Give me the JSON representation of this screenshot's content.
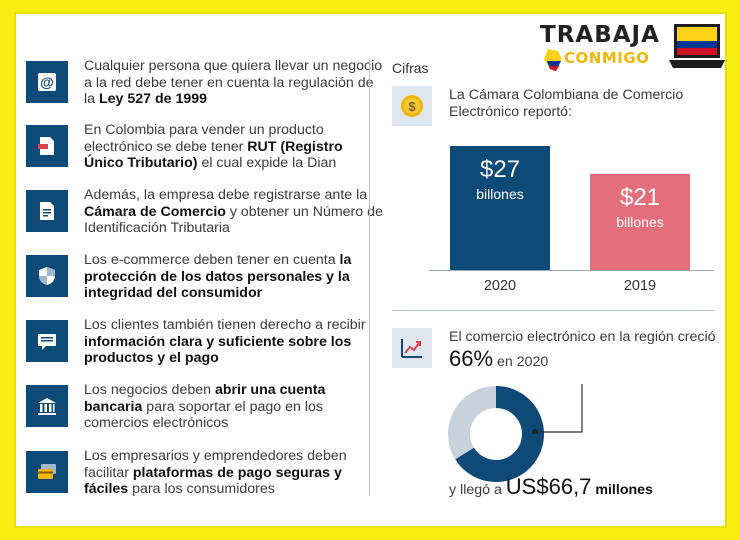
{
  "logo": {
    "line1": "TRABAJA",
    "line2": "CONMIGO"
  },
  "items": [
    {
      "icon": "at-sign-icon",
      "parts": [
        [
          "Cualquier persona que quiera llevar un negocio a la red debe tener en cuenta la regulación de la ",
          false
        ],
        [
          "Ley 527 de 1999",
          true
        ]
      ]
    },
    {
      "icon": "document-icon",
      "parts": [
        [
          "En Colombia para vender un producto electrónico se debe tener ",
          false
        ],
        [
          "RUT (Registro Único Tributario)",
          true
        ],
        [
          " el cual expide la Dian",
          false
        ]
      ]
    },
    {
      "icon": "form-icon",
      "parts": [
        [
          "Además, la empresa debe registrarse ante la ",
          false
        ],
        [
          "Cámara de Comercio",
          true
        ],
        [
          " y obtener un Número de Identificación Tributaria",
          false
        ]
      ]
    },
    {
      "icon": "shield-icon",
      "parts": [
        [
          "Los e-commerce deben tener en cuenta ",
          false
        ],
        [
          "la protección de los datos personales y la integridad del consumidor",
          true
        ]
      ]
    },
    {
      "icon": "chat-icon",
      "parts": [
        [
          "Los clientes también tienen derecho a recibir ",
          false
        ],
        [
          "información clara y suficiente sobre los productos y el pago",
          true
        ]
      ]
    },
    {
      "icon": "bank-icon",
      "parts": [
        [
          "Los negocios deben ",
          false
        ],
        [
          "abrir una cuenta bancaria",
          true
        ],
        [
          " para soportar el pago en los comercios electrónicos",
          false
        ]
      ]
    },
    {
      "icon": "credit-card-icon",
      "parts": [
        [
          "Los empresarios y emprendedores deben facilitar ",
          false
        ],
        [
          "plataformas de pago seguras y fáciles",
          true
        ],
        [
          " para los consumidores",
          false
        ]
      ]
    }
  ],
  "cifras": {
    "heading": "Cifras",
    "report_text": "La Cámara Colombiana de Comercio Electrónico reportó:",
    "growth_prefix": "El comercio electrónico en la región creció ",
    "growth_pct": "66%",
    "growth_suffix": " en 2020",
    "reach_prefix": "y llegó a ",
    "reach_value": "US$66,7",
    "reach_unit": "millones"
  },
  "chart_data": {
    "type": "bar",
    "categories": [
      "2020",
      "2019"
    ],
    "values": [
      27,
      21
    ],
    "value_labels": [
      "$27",
      "$21"
    ],
    "unit": "billones",
    "colors": [
      "#0e4a78",
      "#e46e7b"
    ],
    "donut_fraction": 0.66,
    "donut_colors": {
      "filled": "#0e4a78",
      "rest": "#c9d2dc"
    }
  },
  "colors": {
    "primary": "#0e4a78",
    "accent": "#e46e7b",
    "frame": "#f7ef0f"
  }
}
